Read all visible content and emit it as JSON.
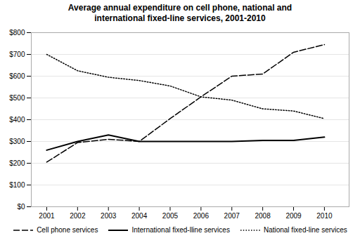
{
  "chart_data": {
    "type": "line",
    "title": "Average annual expenditure on cell phone, national and\ninternational fixed-line services, 2001-2010",
    "x": [
      2001,
      2002,
      2003,
      2004,
      2005,
      2006,
      2007,
      2008,
      2009,
      2010
    ],
    "series": [
      {
        "name": "Cell phone services",
        "color": "#000000",
        "line_style": "dashed",
        "values": [
          205,
          295,
          310,
          300,
          405,
          505,
          600,
          610,
          710,
          745
        ]
      },
      {
        "name": "International fixed-lline services",
        "color": "#000000",
        "line_style": "solid",
        "values": [
          260,
          300,
          330,
          300,
          300,
          300,
          300,
          305,
          305,
          320
        ]
      },
      {
        "name": "National fixed-line services",
        "color": "#000000",
        "line_style": "dotted",
        "values": [
          700,
          625,
          595,
          580,
          555,
          505,
          490,
          450,
          440,
          405
        ]
      }
    ],
    "xlim": [
      2000.5,
      2010.8
    ],
    "xticks": [
      2001,
      2002,
      2003,
      2004,
      2005,
      2006,
      2007,
      2008,
      2009,
      2010
    ],
    "ylim": [
      0,
      800
    ],
    "yticks": [
      {
        "value": 0,
        "label": "$0"
      },
      {
        "value": 100,
        "label": "$100"
      },
      {
        "value": 200,
        "label": "$200"
      },
      {
        "value": 300,
        "label": "$300"
      },
      {
        "value": 400,
        "label": "$400"
      },
      {
        "value": 500,
        "label": "$500"
      },
      {
        "value": 600,
        "label": "$600"
      },
      {
        "value": 700,
        "label": "$700"
      },
      {
        "value": 800,
        "label": "$800"
      }
    ],
    "grid": true,
    "legend": "bottom"
  }
}
